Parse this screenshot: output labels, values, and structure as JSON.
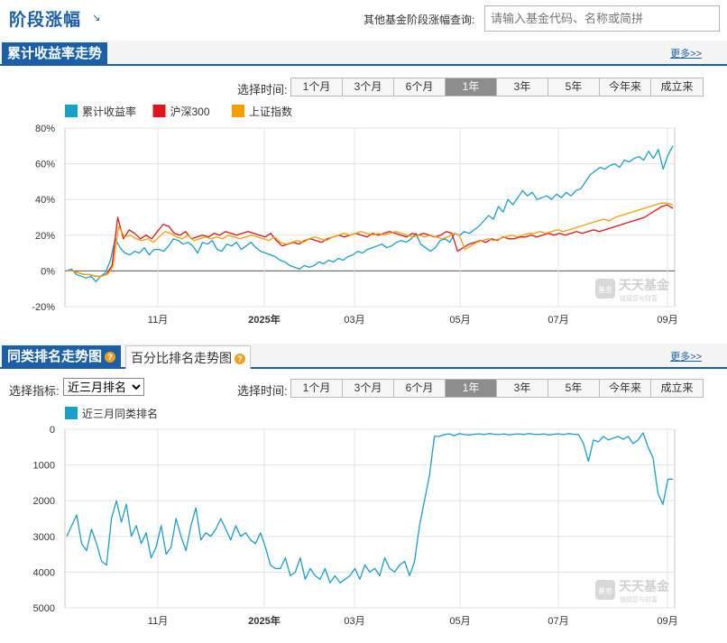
{
  "header": {
    "title": "阶段涨幅",
    "title_arrow": "↘",
    "query_label": "其他基金阶段涨幅查询:",
    "query_placeholder": "请输入基金代码、名称或简拼"
  },
  "section1": {
    "tab_label": "累计收益率走势",
    "more_label": "更多>>",
    "time_label": "选择时间:"
  },
  "section2": {
    "tab_label": "同类排名走势图",
    "tab2_label": "百分比排名走势图",
    "help_glyph": "?",
    "more_label": "更多>>",
    "indicator_label": "选择指标:",
    "indicator_selected": "近三月排名",
    "time_label": "选择时间:"
  },
  "time_buttons": [
    "1个月",
    "3个月",
    "6个月",
    "1年",
    "3年",
    "5年",
    "今年来",
    "成立来"
  ],
  "active_time_button": "1年",
  "watermark": {
    "brand": "天天基金",
    "badge": "基金",
    "sub": "链接您与财富"
  },
  "colors": {
    "fund": "#1a9fc9",
    "hs300": "#e0141b",
    "sh": "#f5a000",
    "accent": "#1a5fa8"
  },
  "chart_data": [
    {
      "type": "line",
      "x_ticks": [
        "11月",
        "2025年",
        "03月",
        "05月",
        "07月",
        "09月"
      ],
      "x_tick_bold": [
        false,
        true,
        false,
        false,
        false,
        false
      ],
      "y_ticks": [
        "80%",
        "60%",
        "40%",
        "20%",
        "0%",
        "-20%"
      ],
      "ylim": [
        -20,
        80
      ],
      "series": [
        {
          "name": "累计收益率",
          "color": "#1a9fc9",
          "values": [
            0,
            1,
            -2,
            -3,
            -4,
            -3,
            -6,
            -3,
            -1,
            6,
            18,
            13,
            10,
            9,
            11,
            10,
            13,
            9,
            12,
            12,
            11,
            14,
            18,
            17,
            15,
            16,
            14,
            10,
            16,
            15,
            17,
            12,
            11,
            15,
            14,
            16,
            12,
            14,
            16,
            13,
            11,
            10,
            9,
            8,
            6,
            5,
            3,
            2,
            1,
            3,
            2,
            3,
            5,
            4,
            6,
            5,
            7,
            6,
            8,
            9,
            11,
            10,
            12,
            13,
            14,
            15,
            13,
            14,
            16,
            17,
            16,
            18,
            21,
            15,
            13,
            11,
            13,
            17,
            18,
            16,
            21,
            20,
            22,
            21,
            23,
            25,
            28,
            31,
            29,
            36,
            33,
            40,
            37,
            41,
            45,
            42,
            44,
            40,
            41,
            42,
            40,
            43,
            41,
            44,
            42,
            45,
            46,
            50,
            54,
            56,
            58,
            57,
            59,
            60,
            58,
            62,
            61,
            63,
            64,
            62,
            67,
            63,
            68,
            57,
            65,
            70
          ]
        },
        {
          "name": "沪深300",
          "color": "#e0141b",
          "values": [
            0,
            0,
            -1,
            -2,
            -2,
            -3,
            -3,
            -2,
            3,
            30,
            18,
            23,
            21,
            18,
            20,
            18,
            22,
            26,
            25,
            21,
            20,
            22,
            18,
            19,
            20,
            19,
            21,
            20,
            22,
            21,
            20,
            21,
            22,
            21,
            20,
            19,
            21,
            17,
            14,
            15,
            16,
            15,
            17,
            18,
            17,
            16,
            18,
            19,
            20,
            19,
            20,
            21,
            20,
            19,
            21,
            20,
            21,
            22,
            21,
            20,
            19,
            21,
            20,
            21,
            20,
            19,
            20,
            22,
            21,
            11,
            13,
            15,
            16,
            17,
            16,
            18,
            17,
            19,
            18,
            18,
            19,
            19,
            20,
            19,
            20,
            21,
            20,
            21,
            20,
            21,
            22,
            21,
            22,
            23,
            22,
            23,
            24,
            25,
            26,
            27,
            28,
            29,
            30,
            32,
            34,
            36,
            37,
            35
          ]
        },
        {
          "name": "上证指数",
          "color": "#f5a000",
          "values": [
            0,
            0,
            -1,
            -2,
            -2,
            -3,
            -3,
            -2,
            2,
            25,
            19,
            20,
            18,
            17,
            18,
            16,
            19,
            22,
            21,
            19,
            18,
            20,
            17,
            18,
            19,
            18,
            19,
            18,
            20,
            19,
            18,
            19,
            20,
            19,
            18,
            17,
            19,
            16,
            15,
            16,
            17,
            16,
            18,
            19,
            18,
            17,
            19,
            20,
            21,
            20,
            21,
            22,
            21,
            20,
            21,
            20,
            21,
            22,
            21,
            20,
            19,
            20,
            19,
            20,
            19,
            18,
            19,
            21,
            20,
            12,
            14,
            16,
            17,
            18,
            17,
            18,
            19,
            20,
            19,
            20,
            21,
            21,
            22,
            21,
            22,
            23,
            22,
            23,
            24,
            25,
            26,
            27,
            28,
            29,
            28,
            30,
            31,
            32,
            33,
            34,
            35,
            36,
            37,
            38,
            38,
            37
          ]
        }
      ]
    },
    {
      "type": "line",
      "x_ticks": [
        "11月",
        "2025年",
        "03月",
        "05月",
        "07月",
        "09月"
      ],
      "x_tick_bold": [
        false,
        true,
        false,
        false,
        false,
        false
      ],
      "y_ticks": [
        "0",
        "1000",
        "2000",
        "3000",
        "4000",
        "5000"
      ],
      "ylim": [
        0,
        5000
      ],
      "series": [
        {
          "name": "近三月同类排名",
          "color": "#1a9fc9",
          "values": [
            3000,
            2700,
            2400,
            3200,
            3400,
            2800,
            3200,
            3700,
            3800,
            2500,
            2000,
            2600,
            2100,
            3000,
            2700,
            3200,
            2900,
            3600,
            3300,
            2700,
            3500,
            3300,
            2500,
            3000,
            3400,
            2700,
            2200,
            3100,
            2900,
            3000,
            2800,
            2500,
            2800,
            3100,
            2700,
            3000,
            2900,
            3100,
            3200,
            2900,
            3300,
            3800,
            3900,
            3900,
            3600,
            4100,
            4000,
            3600,
            4200,
            3900,
            4100,
            4200,
            3900,
            4300,
            4100,
            4300,
            4200,
            4100,
            3900,
            4200,
            3800,
            4000,
            3900,
            4100,
            3600,
            3900,
            4000,
            3800,
            3700,
            4100,
            3700,
            2700,
            2000,
            1300,
            200,
            200,
            150,
            130,
            180,
            120,
            150,
            160,
            140,
            130,
            150,
            120,
            140,
            150,
            130,
            160,
            140,
            130,
            150,
            120,
            140,
            150,
            130,
            160,
            140,
            130,
            150,
            120,
            140,
            150,
            400,
            900,
            300,
            350,
            200,
            300,
            250,
            200,
            280,
            200,
            400,
            300,
            100,
            500,
            800,
            1800,
            2100,
            1400,
            1400
          ]
        }
      ]
    }
  ]
}
